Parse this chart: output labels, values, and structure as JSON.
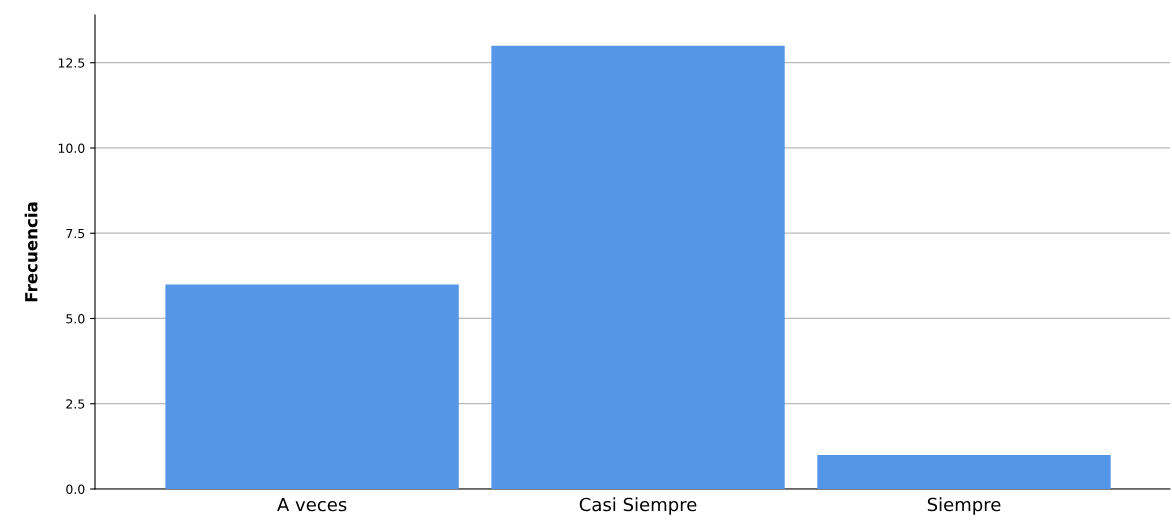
{
  "chart_data": {
    "type": "bar",
    "ylabel": "Frecuencia",
    "categories": [
      "A veces",
      "Casi Siempre",
      "Siempre"
    ],
    "values": [
      6,
      13,
      1
    ],
    "color": "#5596e6",
    "ylim": [
      0,
      13.9
    ],
    "yticks": [
      {
        "value": 0,
        "label": "0.0"
      },
      {
        "value": 2.5,
        "label": "2.5"
      },
      {
        "value": 5,
        "label": "5.0"
      },
      {
        "value": 7.5,
        "label": "7.5"
      },
      {
        "value": 10,
        "label": "10.0"
      },
      {
        "value": 12.5,
        "label": "12.5"
      }
    ],
    "grid": "y",
    "legend": false
  }
}
